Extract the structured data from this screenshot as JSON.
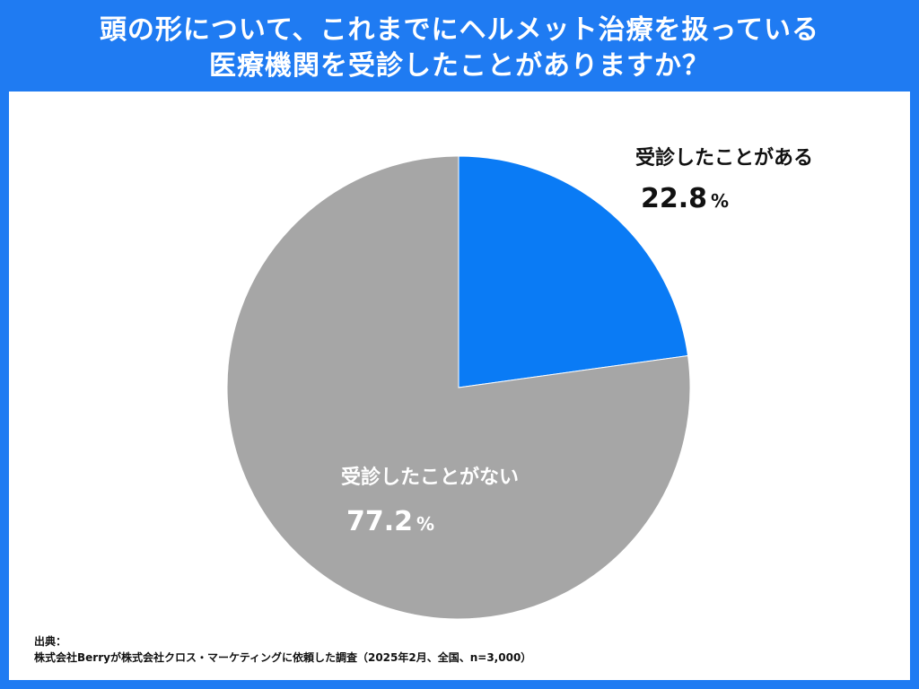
{
  "title": {
    "line1": "頭の形について、これまでにヘルメット治療を扱っている",
    "line2": "医療機関を受診したことがありますか？"
  },
  "chart_data": {
    "type": "pie",
    "slices": [
      {
        "label": "受診したことがある",
        "value": 22.8,
        "display": "22.8",
        "unit": "%",
        "color": "#0a7bf5"
      },
      {
        "label": "受診したことがない",
        "value": 77.2,
        "display": "77.2",
        "unit": "%",
        "color": "#a6a6a6"
      }
    ],
    "start": "12 o'clock",
    "direction": "clockwise"
  },
  "source": {
    "heading": "出典：",
    "text": "株式会社Berryが株式会社クロス・マーケティングに依頼した調査（2025年2月、全国、n=3,000）"
  }
}
